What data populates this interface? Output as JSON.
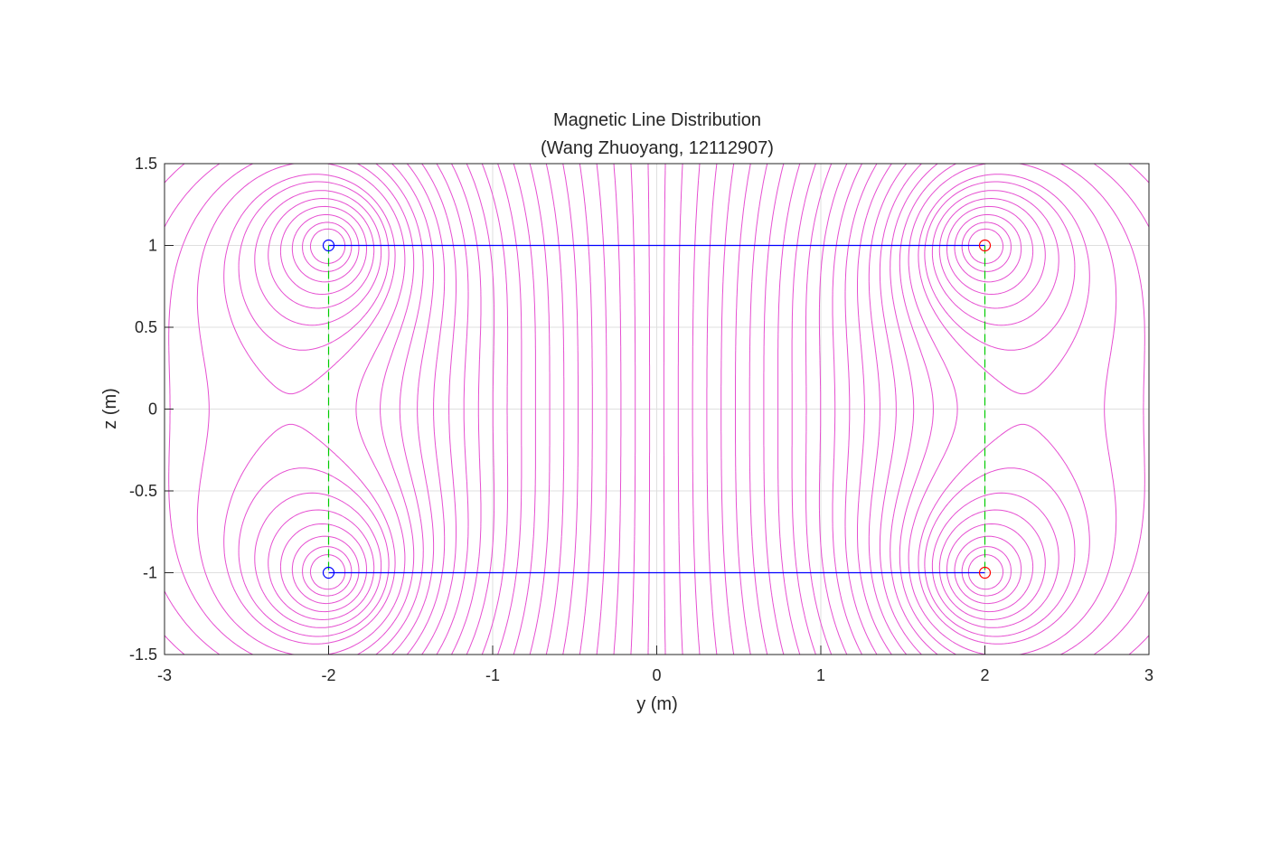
{
  "chart_data": {
    "type": "line",
    "title": "Magnetic Line Distribution",
    "subtitle": "(Wang Zhuoyang, 12112907)",
    "xlabel": "y (m)",
    "ylabel": "z (m)",
    "xlim": [
      -3,
      3
    ],
    "ylim": [
      -1.5,
      1.5
    ],
    "xticks": [
      -3,
      -2,
      -1,
      0,
      1,
      2,
      3
    ],
    "xtick_labels": [
      "-3",
      "-2",
      "-1",
      "0",
      "1",
      "2",
      "3"
    ],
    "yticks": [
      1.5,
      1,
      0.5,
      0,
      -0.5,
      -1,
      -1.5
    ],
    "ytick_labels": [
      "1.5",
      "1",
      "0.5",
      "0",
      "-0.5",
      "-1",
      "-1.5"
    ],
    "grid": true,
    "field_lines": {
      "color": "#e64fd1",
      "sources": [
        {
          "y": -2,
          "z": 1,
          "sign": 1
        },
        {
          "y": 2,
          "z": 1,
          "sign": -1
        },
        {
          "y": -2,
          "z": -1,
          "sign": 1
        },
        {
          "y": 2,
          "z": -1,
          "sign": -1
        }
      ],
      "levels": 40
    },
    "conductors": [
      {
        "from": [
          -2,
          1
        ],
        "to": [
          2,
          1
        ],
        "color": "#0000ff"
      },
      {
        "from": [
          -2,
          -1
        ],
        "to": [
          2,
          -1
        ],
        "color": "#0000ff"
      }
    ],
    "connectors": [
      {
        "from": [
          -2,
          1
        ],
        "to": [
          -2,
          -1
        ],
        "color": "#00cc00",
        "style": "dashed"
      },
      {
        "from": [
          2,
          1
        ],
        "to": [
          2,
          -1
        ],
        "color": "#00cc00",
        "style": "dashed"
      }
    ],
    "markers": [
      {
        "y": -2,
        "z": 1,
        "color": "#0000ff"
      },
      {
        "y": -2,
        "z": -1,
        "color": "#0000ff"
      },
      {
        "y": 2,
        "z": 1,
        "color": "#ff0000"
      },
      {
        "y": 2,
        "z": -1,
        "color": "#ff0000"
      }
    ]
  }
}
